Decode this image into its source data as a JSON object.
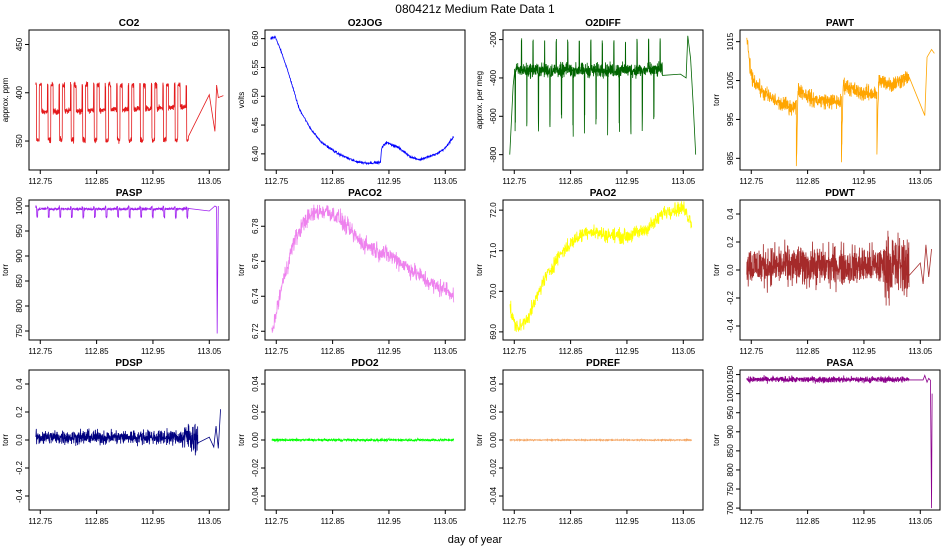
{
  "figure": {
    "title": "080421z   Medium Rate Data 1",
    "xlabel": "day of year"
  },
  "chart_data": [
    {
      "type": "line",
      "name": "co2",
      "title": "CO2",
      "ylabel": "approx. ppm",
      "color": "#e41a1c",
      "xlim": [
        112.73,
        113.085
      ],
      "ylim": [
        320,
        465
      ],
      "xticks": [
        "112.75",
        "112.85",
        "112.95",
        "113.05"
      ],
      "yticks": [
        {
          "v": 350,
          "t": "350"
        },
        {
          "v": 400,
          "t": "400"
        },
        {
          "v": 450,
          "t": "450"
        }
      ],
      "model": "square",
      "params": {
        "start": 112.742,
        "end": 113.013,
        "period": 0.0205,
        "duty": 0.5,
        "high": 408,
        "low": 351,
        "base": 380,
        "baseEnd": 385,
        "noise": 1.5,
        "gapStart": 113.02,
        "gapEnd": 113.05,
        "tail": [
          [
            113.05,
            398
          ],
          [
            113.06,
            360
          ],
          [
            113.063,
            408
          ],
          [
            113.066,
            395
          ],
          [
            113.075,
            397
          ]
        ]
      }
    },
    {
      "type": "line",
      "name": "o2jog",
      "title": "O2JOG",
      "ylabel": "volts",
      "color": "#0000ff",
      "xlim": [
        112.73,
        113.085
      ],
      "ylim": [
        6.372,
        6.615
      ],
      "xticks": [
        "112.75",
        "112.85",
        "112.95",
        "113.05"
      ],
      "yticks": [
        {
          "v": 6.4,
          "t": "6.40"
        },
        {
          "v": 6.45,
          "t": "6.45"
        },
        {
          "v": 6.5,
          "t": "6.50"
        },
        {
          "v": 6.55,
          "t": "6.55"
        },
        {
          "v": 6.6,
          "t": "6.60"
        }
      ],
      "model": "points",
      "params": {
        "noise": 0.001,
        "pts": [
          [
            112.74,
            6.6
          ],
          [
            112.748,
            6.603
          ],
          [
            112.76,
            6.575
          ],
          [
            112.775,
            6.53
          ],
          [
            112.79,
            6.48
          ],
          [
            112.81,
            6.445
          ],
          [
            112.83,
            6.42
          ],
          [
            112.86,
            6.4
          ],
          [
            112.89,
            6.387
          ],
          [
            112.91,
            6.384
          ],
          [
            112.935,
            6.385
          ],
          [
            112.937,
            6.41
          ],
          [
            112.945,
            6.42
          ],
          [
            112.965,
            6.412
          ],
          [
            112.99,
            6.394
          ],
          [
            113.005,
            6.39
          ],
          [
            113.035,
            6.4
          ],
          [
            113.05,
            6.41
          ],
          [
            113.065,
            6.43
          ]
        ]
      }
    },
    {
      "type": "line",
      "name": "o2diff",
      "title": "O2DIFF",
      "ylabel": "approx. per meg",
      "color": "#006400",
      "xlim": [
        112.73,
        113.085
      ],
      "ylim": [
        -880,
        -150
      ],
      "xticks": [
        "112.75",
        "112.85",
        "112.95",
        "113.05"
      ],
      "yticks": [
        {
          "v": -800,
          "t": "-800"
        },
        {
          "v": -600,
          "t": "-600"
        },
        {
          "v": -400,
          "t": "-400"
        },
        {
          "v": -200,
          "t": "-200"
        }
      ],
      "model": "spikes",
      "params": {
        "start": 112.742,
        "end": 113.013,
        "period": 0.0205,
        "base": -360,
        "noise": 18,
        "up": -205,
        "down": -620,
        "tail": [
          [
            113.045,
            -380
          ],
          [
            113.055,
            -400
          ],
          [
            113.058,
            -180
          ],
          [
            113.063,
            -300
          ],
          [
            113.068,
            -560
          ],
          [
            113.072,
            -800
          ]
        ],
        "early": [
          [
            112.742,
            -800
          ],
          [
            112.745,
            -620
          ],
          [
            112.748,
            -440
          ]
        ]
      }
    },
    {
      "type": "line",
      "name": "pawt",
      "title": "PAWT",
      "ylabel": "torr",
      "color": "#ffa500",
      "xlim": [
        112.73,
        113.085
      ],
      "ylim": [
        982,
        1018
      ],
      "xticks": [
        "112.75",
        "112.85",
        "112.95",
        "113.05"
      ],
      "yticks": [
        {
          "v": 985,
          "t": "985"
        },
        {
          "v": 995,
          "t": "995"
        },
        {
          "v": 1005,
          "t": "1005"
        },
        {
          "v": 1015,
          "t": "1015"
        }
      ],
      "model": "segments",
      "params": {
        "noise": 1.0,
        "segs": [
          [
            112.742,
            112.83,
            [
              [
                112.742,
                1016
              ],
              [
                112.75,
                1006
              ],
              [
                112.77,
                1002
              ],
              [
                112.8,
                999
              ],
              [
                112.83,
                998
              ]
            ]
          ],
          [
            112.83,
            112.91,
            [
              [
                112.83,
                983
              ],
              [
                112.833,
                1003
              ],
              [
                112.86,
                1000
              ],
              [
                112.91,
                999.5
              ]
            ]
          ],
          [
            112.91,
            112.973,
            [
              [
                112.91,
                984
              ],
              [
                112.913,
                1004
              ],
              [
                112.94,
                1002
              ],
              [
                112.973,
                1001.5
              ]
            ]
          ],
          [
            112.973,
            113.03,
            [
              [
                112.973,
                986
              ],
              [
                112.976,
                1005
              ],
              [
                113.0,
                1004
              ],
              [
                113.03,
                1006
              ]
            ]
          ]
        ],
        "tail": [
          [
            113.03,
            1006
          ],
          [
            113.058,
            996
          ],
          [
            113.062,
            1011
          ],
          [
            113.07,
            1013
          ],
          [
            113.075,
            1012
          ]
        ]
      }
    },
    {
      "type": "line",
      "name": "pasp",
      "title": "PASP",
      "ylabel": "torr",
      "color": "#a020f0",
      "xlim": [
        112.73,
        113.085
      ],
      "ylim": [
        732,
        1012
      ],
      "xticks": [
        "112.75",
        "112.85",
        "112.95",
        "113.05"
      ],
      "yticks": [
        {
          "v": 750,
          "t": "750"
        },
        {
          "v": 800,
          "t": "800"
        },
        {
          "v": 850,
          "t": "850"
        },
        {
          "v": 900,
          "t": "900"
        },
        {
          "v": 950,
          "t": "950"
        },
        {
          "v": 1000,
          "t": "1000"
        }
      ],
      "model": "square",
      "params": {
        "start": 112.742,
        "end": 113.013,
        "period": 0.0205,
        "duty": 0.45,
        "high": 998,
        "low": 978,
        "base": 994,
        "baseEnd": 994,
        "noise": 1.2,
        "gapStart": 113.02,
        "gapEnd": 113.05,
        "tail": [
          [
            113.013,
            995
          ],
          [
            113.05,
            990
          ],
          [
            113.06,
            1000
          ],
          [
            113.063,
            998
          ],
          [
            113.064,
            745
          ],
          [
            113.066,
            1000
          ]
        ]
      }
    },
    {
      "type": "line",
      "name": "paco2",
      "title": "PACO2",
      "ylabel": "torr",
      "color": "#ee82ee",
      "xlim": [
        112.73,
        113.085
      ],
      "ylim": [
        6.715,
        6.795
      ],
      "xticks": [
        "112.75",
        "112.85",
        "112.95",
        "113.05"
      ],
      "yticks": [
        {
          "v": 6.72,
          "t": "6.72"
        },
        {
          "v": 6.74,
          "t": "6.74"
        },
        {
          "v": 6.76,
          "t": "6.76"
        },
        {
          "v": 6.78,
          "t": "6.78"
        }
      ],
      "model": "points",
      "params": {
        "noise": 0.0025,
        "pts": [
          [
            112.742,
            6.718
          ],
          [
            112.76,
            6.746
          ],
          [
            112.78,
            6.77
          ],
          [
            112.8,
            6.783
          ],
          [
            112.82,
            6.788
          ],
          [
            112.84,
            6.789
          ],
          [
            112.86,
            6.785
          ],
          [
            112.88,
            6.778
          ],
          [
            112.9,
            6.771
          ],
          [
            112.93,
            6.766
          ],
          [
            112.96,
            6.762
          ],
          [
            112.99,
            6.755
          ],
          [
            113.03,
            6.746
          ],
          [
            113.05,
            6.744
          ],
          [
            113.065,
            6.741
          ]
        ]
      }
    },
    {
      "type": "line",
      "name": "pao2",
      "title": "PAO2",
      "ylabel": "torr",
      "color": "#ffff00",
      "xlim": [
        112.73,
        113.085
      ],
      "ylim": [
        68.8,
        72.25
      ],
      "xticks": [
        "112.75",
        "112.85",
        "112.95",
        "113.05"
      ],
      "yticks": [
        {
          "v": 69.0,
          "t": "69.0"
        },
        {
          "v": 70.0,
          "t": "70.0"
        },
        {
          "v": 71.0,
          "t": "71.0"
        },
        {
          "v": 72.0,
          "t": "72.0"
        }
      ],
      "model": "points",
      "params": {
        "noise": 0.09,
        "pts": [
          [
            112.742,
            69.6
          ],
          [
            112.75,
            69.2
          ],
          [
            112.76,
            69.1
          ],
          [
            112.78,
            69.5
          ],
          [
            112.8,
            70.2
          ],
          [
            112.83,
            70.9
          ],
          [
            112.86,
            71.3
          ],
          [
            112.88,
            71.5
          ],
          [
            112.91,
            71.4
          ],
          [
            112.95,
            71.35
          ],
          [
            112.98,
            71.5
          ],
          [
            113.0,
            71.7
          ],
          [
            113.015,
            71.95
          ],
          [
            113.025,
            72.0
          ],
          [
            113.05,
            72.05
          ],
          [
            113.065,
            71.7
          ]
        ]
      }
    },
    {
      "type": "line",
      "name": "pdwt",
      "title": "PDWT",
      "ylabel": "torr",
      "color": "#a52a2a",
      "xlim": [
        112.73,
        113.085
      ],
      "ylim": [
        -0.5,
        0.5
      ],
      "xticks": [
        "112.75",
        "112.85",
        "112.95",
        "113.05"
      ],
      "yticks": [
        {
          "v": -0.4,
          "t": "-0.4"
        },
        {
          "v": -0.2,
          "t": "-0.2"
        },
        {
          "v": 0.0,
          "t": "0.0"
        },
        {
          "v": 0.2,
          "t": "0.2"
        },
        {
          "v": 0.4,
          "t": "0.4"
        }
      ],
      "model": "noise",
      "params": {
        "start": 112.742,
        "end": 113.03,
        "center": 0.03,
        "noise": 0.07,
        "burstStart": 112.985,
        "burstNoise": 0.11,
        "tail": [
          [
            113.03,
            -0.04
          ],
          [
            113.05,
            0.05
          ],
          [
            113.055,
            -0.1
          ],
          [
            113.06,
            0.18
          ],
          [
            113.065,
            -0.05
          ],
          [
            113.07,
            0.15
          ]
        ]
      }
    },
    {
      "type": "line",
      "name": "pdsp",
      "title": "PDSP",
      "ylabel": "torr",
      "color": "#000080",
      "xlim": [
        112.73,
        113.085
      ],
      "ylim": [
        -0.5,
        0.5
      ],
      "xticks": [
        "112.75",
        "112.85",
        "112.95",
        "113.05"
      ],
      "yticks": [
        {
          "v": -0.4,
          "t": "-0.4"
        },
        {
          "v": -0.2,
          "t": "-0.2"
        },
        {
          "v": 0.0,
          "t": "0.0"
        },
        {
          "v": 0.2,
          "t": "0.2"
        },
        {
          "v": 0.4,
          "t": "0.4"
        }
      ],
      "model": "noise",
      "params": {
        "start": 112.742,
        "end": 113.03,
        "center": 0.02,
        "noise": 0.025,
        "burstStart": 113.0,
        "burstNoise": 0.05,
        "tail": [
          [
            113.03,
            -0.02
          ],
          [
            113.05,
            0.02
          ],
          [
            113.058,
            -0.05
          ],
          [
            113.062,
            0.1
          ],
          [
            113.066,
            -0.06
          ],
          [
            113.07,
            0.22
          ]
        ]
      }
    },
    {
      "type": "line",
      "name": "pdo2",
      "title": "PDO2",
      "ylabel": "torr",
      "color": "#00ff00",
      "xlim": [
        112.73,
        113.085
      ],
      "ylim": [
        -0.05,
        0.05
      ],
      "xticks": [
        "112.75",
        "112.85",
        "112.95",
        "113.05"
      ],
      "yticks": [
        {
          "v": -0.04,
          "t": "-0.04"
        },
        {
          "v": -0.02,
          "t": "-0.02"
        },
        {
          "v": 0.0,
          "t": "0.00"
        },
        {
          "v": 0.02,
          "t": "0.02"
        },
        {
          "v": 0.04,
          "t": "0.04"
        }
      ],
      "model": "noise",
      "params": {
        "start": 112.742,
        "end": 113.065,
        "center": 0.0,
        "noise": 0.0004,
        "burstStart": 113.1,
        "burstNoise": 0.0,
        "tail": []
      }
    },
    {
      "type": "line",
      "name": "pdref",
      "title": "PDREF",
      "ylabel": "torr",
      "color": "#f4a460",
      "xlim": [
        112.73,
        113.085
      ],
      "ylim": [
        -0.05,
        0.05
      ],
      "xticks": [
        "112.75",
        "112.85",
        "112.95",
        "113.05"
      ],
      "yticks": [
        {
          "v": -0.04,
          "t": "-0.04"
        },
        {
          "v": -0.02,
          "t": "-0.02"
        },
        {
          "v": 0.0,
          "t": "0.00"
        },
        {
          "v": 0.02,
          "t": "0.02"
        },
        {
          "v": 0.04,
          "t": "0.04"
        }
      ],
      "model": "noise",
      "params": {
        "start": 112.742,
        "end": 113.065,
        "center": 0.0,
        "noise": 0.0002,
        "burstStart": 113.1,
        "burstNoise": 0.0,
        "tail": []
      }
    },
    {
      "type": "line",
      "name": "pasa",
      "title": "PASA",
      "ylabel": "torr",
      "color": "#8b008b",
      "xlim": [
        112.73,
        113.085
      ],
      "ylim": [
        695,
        1062
      ],
      "xticks": [
        "112.75",
        "112.85",
        "112.95",
        "113.05"
      ],
      "yticks": [
        {
          "v": 700,
          "t": "700"
        },
        {
          "v": 750,
          "t": "750"
        },
        {
          "v": 800,
          "t": "800"
        },
        {
          "v": 850,
          "t": "850"
        },
        {
          "v": 900,
          "t": "900"
        },
        {
          "v": 950,
          "t": "950"
        },
        {
          "v": 1000,
          "t": "1000"
        },
        {
          "v": 1050,
          "t": "1050"
        }
      ],
      "model": "noise",
      "params": {
        "start": 112.742,
        "end": 113.03,
        "center": 1037,
        "noise": 4,
        "burstStart": 113.1,
        "burstNoise": 0,
        "tail": [
          [
            113.03,
            1036
          ],
          [
            113.055,
            1036
          ],
          [
            113.058,
            1048
          ],
          [
            113.062,
            1030
          ],
          [
            113.065,
            1040
          ],
          [
            113.068,
            1035
          ],
          [
            113.07,
            700
          ],
          [
            113.071,
            1000
          ]
        ]
      }
    }
  ]
}
